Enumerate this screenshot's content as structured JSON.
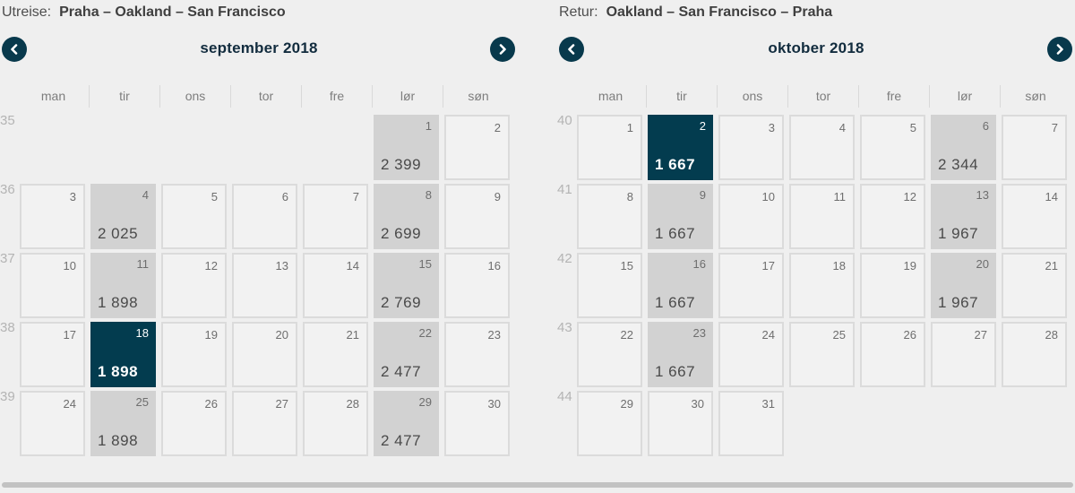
{
  "colors": {
    "accent_dark_teal": "#033c4f",
    "price_cell_bg": "#d2d2d2",
    "empty_cell_bg": "#f2f2f2",
    "page_bg": "#efefef"
  },
  "icons": {
    "prev": "chevron-left-icon",
    "next": "chevron-right-icon"
  },
  "calendars": [
    {
      "direction_label": "Utreise:",
      "route": "Praha – Oakland – San Francisco",
      "month_title": "september 2018",
      "day_headers": [
        "man",
        "tir",
        "ons",
        "tor",
        "fre",
        "lør",
        "søn"
      ],
      "weeks": [
        {
          "week_number": "35",
          "days": [
            null,
            null,
            null,
            null,
            null,
            {
              "day": "1",
              "price": "2 399",
              "state": "price"
            },
            {
              "day": "2",
              "state": "empty"
            }
          ]
        },
        {
          "week_number": "36",
          "days": [
            {
              "day": "3",
              "state": "empty"
            },
            {
              "day": "4",
              "price": "2 025",
              "state": "price"
            },
            {
              "day": "5",
              "state": "empty"
            },
            {
              "day": "6",
              "state": "empty"
            },
            {
              "day": "7",
              "state": "empty"
            },
            {
              "day": "8",
              "price": "2 699",
              "state": "price"
            },
            {
              "day": "9",
              "state": "empty"
            }
          ]
        },
        {
          "week_number": "37",
          "days": [
            {
              "day": "10",
              "state": "empty"
            },
            {
              "day": "11",
              "price": "1 898",
              "state": "price"
            },
            {
              "day": "12",
              "state": "empty"
            },
            {
              "day": "13",
              "state": "empty"
            },
            {
              "day": "14",
              "state": "empty"
            },
            {
              "day": "15",
              "price": "2 769",
              "state": "price"
            },
            {
              "day": "16",
              "state": "empty"
            }
          ]
        },
        {
          "week_number": "38",
          "days": [
            {
              "day": "17",
              "state": "empty"
            },
            {
              "day": "18",
              "price": "1 898",
              "state": "selected"
            },
            {
              "day": "19",
              "state": "empty"
            },
            {
              "day": "20",
              "state": "empty"
            },
            {
              "day": "21",
              "state": "empty"
            },
            {
              "day": "22",
              "price": "2 477",
              "state": "price"
            },
            {
              "day": "23",
              "state": "empty"
            }
          ]
        },
        {
          "week_number": "39",
          "days": [
            {
              "day": "24",
              "state": "empty"
            },
            {
              "day": "25",
              "price": "1 898",
              "state": "price"
            },
            {
              "day": "26",
              "state": "empty"
            },
            {
              "day": "27",
              "state": "empty"
            },
            {
              "day": "28",
              "state": "empty"
            },
            {
              "day": "29",
              "price": "2 477",
              "state": "price"
            },
            {
              "day": "30",
              "state": "empty"
            }
          ]
        }
      ]
    },
    {
      "direction_label": "Retur:",
      "route": "Oakland – San Francisco – Praha",
      "month_title": "oktober 2018",
      "day_headers": [
        "man",
        "tir",
        "ons",
        "tor",
        "fre",
        "lør",
        "søn"
      ],
      "weeks": [
        {
          "week_number": "40",
          "days": [
            {
              "day": "1",
              "state": "empty"
            },
            {
              "day": "2",
              "price": "1 667",
              "state": "selected"
            },
            {
              "day": "3",
              "state": "empty"
            },
            {
              "day": "4",
              "state": "empty"
            },
            {
              "day": "5",
              "state": "empty"
            },
            {
              "day": "6",
              "price": "2 344",
              "state": "price"
            },
            {
              "day": "7",
              "state": "empty"
            }
          ]
        },
        {
          "week_number": "41",
          "days": [
            {
              "day": "8",
              "state": "empty"
            },
            {
              "day": "9",
              "price": "1 667",
              "state": "price"
            },
            {
              "day": "10",
              "state": "empty"
            },
            {
              "day": "11",
              "state": "empty"
            },
            {
              "day": "12",
              "state": "empty"
            },
            {
              "day": "13",
              "price": "1 967",
              "state": "price"
            },
            {
              "day": "14",
              "state": "empty"
            }
          ]
        },
        {
          "week_number": "42",
          "days": [
            {
              "day": "15",
              "state": "empty"
            },
            {
              "day": "16",
              "price": "1 667",
              "state": "price"
            },
            {
              "day": "17",
              "state": "empty"
            },
            {
              "day": "18",
              "state": "empty"
            },
            {
              "day": "19",
              "state": "empty"
            },
            {
              "day": "20",
              "price": "1 967",
              "state": "price"
            },
            {
              "day": "21",
              "state": "empty"
            }
          ]
        },
        {
          "week_number": "43",
          "days": [
            {
              "day": "22",
              "state": "empty"
            },
            {
              "day": "23",
              "price": "1 667",
              "state": "price"
            },
            {
              "day": "24",
              "state": "empty"
            },
            {
              "day": "25",
              "state": "empty"
            },
            {
              "day": "26",
              "state": "empty"
            },
            {
              "day": "27",
              "state": "empty"
            },
            {
              "day": "28",
              "state": "empty"
            }
          ]
        },
        {
          "week_number": "44",
          "days": [
            {
              "day": "29",
              "state": "empty"
            },
            {
              "day": "30",
              "state": "empty"
            },
            {
              "day": "31",
              "state": "empty"
            },
            null,
            null,
            null,
            null
          ]
        }
      ]
    }
  ]
}
